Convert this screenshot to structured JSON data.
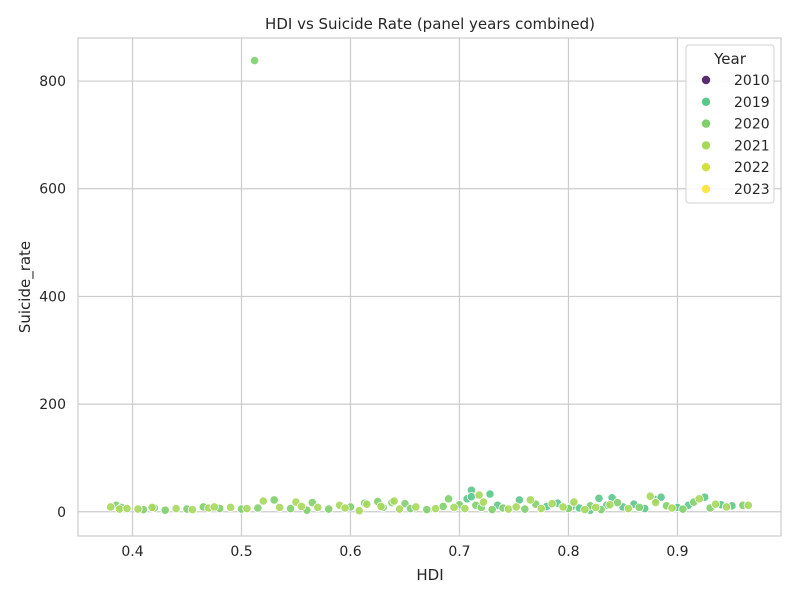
{
  "chart_data": {
    "type": "scatter",
    "title": "HDI vs Suicide Rate (panel years combined)",
    "xlabel": "HDI",
    "ylabel": "Suicide_rate",
    "xlim": [
      0.35,
      0.995
    ],
    "ylim": [
      -45,
      880
    ],
    "xticks": [
      0.4,
      0.5,
      0.6,
      0.7,
      0.8,
      0.9
    ],
    "xtick_labels": [
      "0.4",
      "0.5",
      "0.6",
      "0.7",
      "0.8",
      "0.9"
    ],
    "yticks": [
      0,
      200,
      400,
      600,
      800
    ],
    "ytick_labels": [
      "0",
      "200",
      "400",
      "600",
      "800"
    ],
    "grid": true,
    "legend": {
      "title": "Year",
      "placement": "top-right",
      "entries": [
        {
          "label": "2010",
          "color": "#5a2d6e"
        },
        {
          "label": "2019",
          "color": "#5bc88a"
        },
        {
          "label": "2020",
          "color": "#7ecf6a"
        },
        {
          "label": "2021",
          "color": "#a6d85a"
        },
        {
          "label": "2022",
          "color": "#d2e046"
        },
        {
          "label": "2023",
          "color": "#fde54c"
        }
      ]
    },
    "series": [
      {
        "name": "2019",
        "color": "#5bc88a",
        "points": [
          [
            0.707,
            24
          ],
          [
            0.711,
            40
          ],
          [
            0.728,
            33
          ],
          [
            0.735,
            12
          ],
          [
            0.755,
            22
          ],
          [
            0.79,
            16
          ],
          [
            0.803,
            10
          ],
          [
            0.81,
            7
          ],
          [
            0.82,
            3
          ],
          [
            0.828,
            25
          ],
          [
            0.835,
            12
          ],
          [
            0.84,
            26
          ],
          [
            0.85,
            9
          ],
          [
            0.86,
            14
          ],
          [
            0.88,
            23
          ],
          [
            0.885,
            27
          ],
          [
            0.9,
            8
          ],
          [
            0.91,
            12
          ],
          [
            0.925,
            27
          ],
          [
            0.94,
            13
          ],
          [
            0.95,
            11
          ],
          [
            0.711,
            28
          ],
          [
            0.78,
            10
          ],
          [
            0.87,
            6
          ]
        ]
      },
      {
        "name": "2020",
        "color": "#7ecf6a",
        "points": [
          [
            0.512,
            838
          ],
          [
            0.385,
            12
          ],
          [
            0.39,
            8
          ],
          [
            0.41,
            4
          ],
          [
            0.42,
            7
          ],
          [
            0.43,
            3
          ],
          [
            0.45,
            5
          ],
          [
            0.465,
            9
          ],
          [
            0.48,
            6
          ],
          [
            0.5,
            5
          ],
          [
            0.515,
            7
          ],
          [
            0.53,
            22
          ],
          [
            0.545,
            6
          ],
          [
            0.56,
            3
          ],
          [
            0.565,
            17
          ],
          [
            0.58,
            5
          ],
          [
            0.6,
            9
          ],
          [
            0.613,
            16
          ],
          [
            0.625,
            19
          ],
          [
            0.63,
            8
          ],
          [
            0.638,
            17
          ],
          [
            0.65,
            15
          ],
          [
            0.655,
            6
          ],
          [
            0.67,
            4
          ],
          [
            0.685,
            10
          ],
          [
            0.69,
            24
          ],
          [
            0.7,
            13
          ],
          [
            0.715,
            12
          ],
          [
            0.72,
            8
          ],
          [
            0.73,
            4
          ],
          [
            0.74,
            7
          ],
          [
            0.76,
            5
          ],
          [
            0.77,
            14
          ],
          [
            0.8,
            6
          ],
          [
            0.82,
            11
          ],
          [
            0.83,
            4
          ],
          [
            0.845,
            17
          ],
          [
            0.865,
            8
          ],
          [
            0.89,
            11
          ],
          [
            0.905,
            5
          ],
          [
            0.915,
            18
          ],
          [
            0.93,
            7
          ],
          [
            0.96,
            12
          ]
        ]
      },
      {
        "name": "2021",
        "color": "#a6d85a",
        "points": [
          [
            0.38,
            9
          ],
          [
            0.388,
            5
          ],
          [
            0.395,
            6
          ],
          [
            0.405,
            5
          ],
          [
            0.418,
            8
          ],
          [
            0.44,
            6
          ],
          [
            0.455,
            4
          ],
          [
            0.47,
            7
          ],
          [
            0.475,
            9
          ],
          [
            0.49,
            8
          ],
          [
            0.505,
            6
          ],
          [
            0.52,
            20
          ],
          [
            0.535,
            8
          ],
          [
            0.55,
            18
          ],
          [
            0.555,
            10
          ],
          [
            0.57,
            8
          ],
          [
            0.59,
            12
          ],
          [
            0.595,
            7
          ],
          [
            0.608,
            2
          ],
          [
            0.615,
            14
          ],
          [
            0.628,
            10
          ],
          [
            0.64,
            20
          ],
          [
            0.645,
            5
          ],
          [
            0.66,
            9
          ],
          [
            0.678,
            6
          ],
          [
            0.695,
            8
          ],
          [
            0.705,
            6
          ],
          [
            0.718,
            31
          ],
          [
            0.722,
            18
          ],
          [
            0.745,
            5
          ],
          [
            0.752,
            9
          ],
          [
            0.765,
            22
          ],
          [
            0.775,
            6
          ],
          [
            0.785,
            15
          ],
          [
            0.795,
            9
          ],
          [
            0.805,
            18
          ],
          [
            0.815,
            4
          ],
          [
            0.825,
            8
          ],
          [
            0.838,
            13
          ],
          [
            0.855,
            6
          ],
          [
            0.875,
            29
          ],
          [
            0.88,
            17
          ],
          [
            0.895,
            7
          ],
          [
            0.92,
            24
          ],
          [
            0.935,
            14
          ],
          [
            0.945,
            9
          ],
          [
            0.965,
            12
          ]
        ]
      }
    ]
  }
}
